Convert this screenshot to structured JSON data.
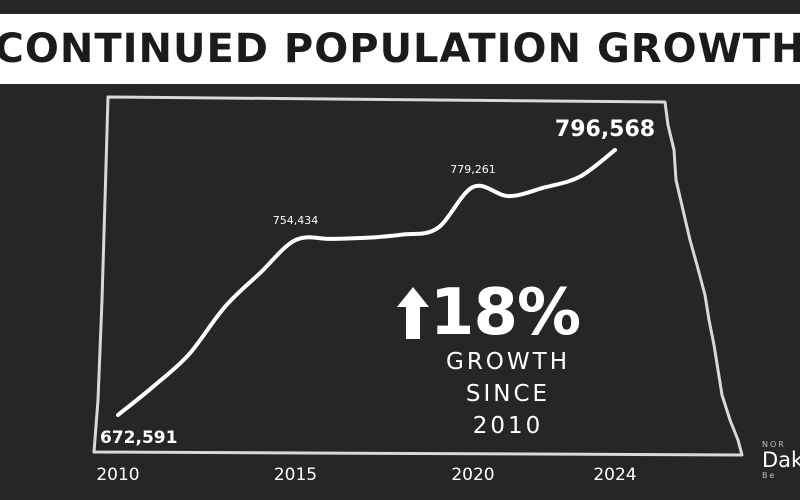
{
  "header": {
    "title": "CONTINUED POPULATION GROWTH"
  },
  "chart_data": {
    "type": "line",
    "title": "CONTINUED POPULATION GROWTH",
    "x": [
      2010,
      2015,
      2020,
      2024
    ],
    "xtick_labels": [
      "2010",
      "2015",
      "2020",
      "2024"
    ],
    "series": [
      {
        "x": [
          2010,
          2011,
          2012,
          2013,
          2014,
          2015,
          2016,
          2017,
          2018,
          2019,
          2020,
          2021,
          2022,
          2023,
          2024
        ],
        "values": [
          672591,
          686000,
          701000,
          723000,
          739000,
          754434,
          755000,
          755500,
          757000,
          760000,
          779261,
          775000,
          779000,
          784000,
          796568
        ]
      }
    ],
    "point_labels": [
      {
        "x": 2010,
        "label": "672,591"
      },
      {
        "x": 2015,
        "label": "754,434"
      },
      {
        "x": 2020,
        "label": "779,261"
      },
      {
        "x": 2024,
        "label": "796,568"
      }
    ],
    "ylim": [
      665000,
      805000
    ],
    "grid": false,
    "legend": "none",
    "line_color": "#ffffff",
    "background_color": "#262626",
    "outline": "North Dakota state outline"
  },
  "callout": {
    "arrow_icon": "up-arrow-icon",
    "percent": "18%",
    "line1": "GROWTH",
    "line2": "SINCE 2010"
  },
  "logo": {
    "small_text": "NOR",
    "main_text": "Dak",
    "tiny_text": "Be"
  }
}
